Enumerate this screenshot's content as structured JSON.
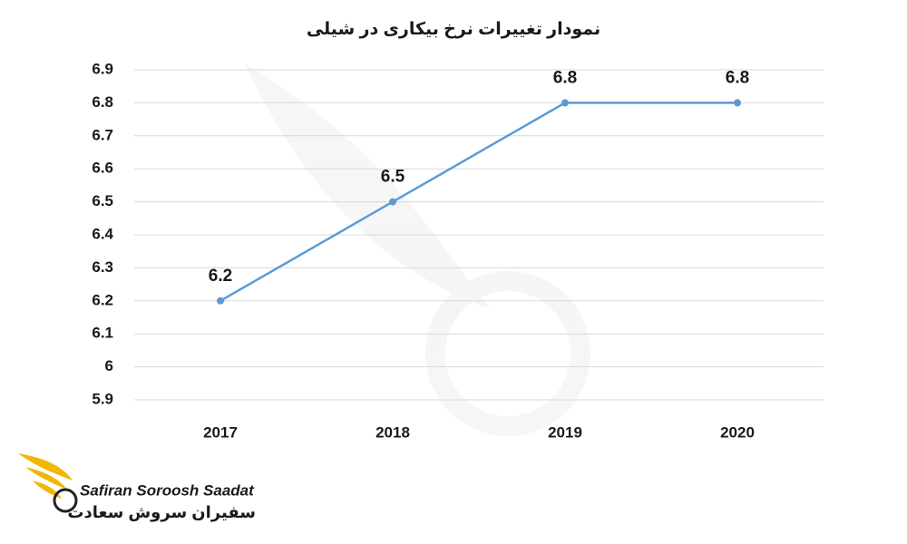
{
  "chart_data": {
    "type": "line",
    "title": "نمودار تغییرات نرخ بیکاری در شیلی",
    "categories": [
      "2017",
      "2018",
      "2019",
      "2020"
    ],
    "values": [
      6.2,
      6.5,
      6.8,
      6.8
    ],
    "color": "#5b9bd5",
    "ylim": [
      5.9,
      6.9
    ],
    "yticks": [
      5.9,
      6,
      6.1,
      6.2,
      6.3,
      6.4,
      6.5,
      6.6,
      6.7,
      6.8,
      6.9
    ],
    "grid": true,
    "data_labels": true
  },
  "logo": {
    "name_latin": "Safiran Soroosh Saadat",
    "name_persian": "سفیران سروش سعادت"
  }
}
